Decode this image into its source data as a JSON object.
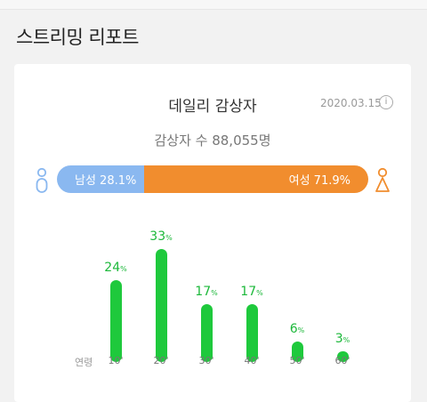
{
  "page": {
    "section_title": "스트리밍 리포트"
  },
  "card": {
    "title": "데일리 감상자",
    "date": "2020.03.15",
    "info_icon": "info-icon",
    "total_label": "감상자 수 88,055명"
  },
  "gender": {
    "male_label": "남성 28.1%",
    "female_label": "여성 71.9%",
    "male_fraction": 0.281,
    "female_fraction": 0.719,
    "male_color": "#8ab8f0",
    "female_color": "#f18d2e"
  },
  "chart_data": {
    "type": "bar",
    "categories": [
      "10'",
      "20'",
      "30'",
      "40'",
      "50'",
      "60'"
    ],
    "values": [
      24,
      33,
      17,
      17,
      6,
      3
    ],
    "value_suffix": "%",
    "xlabel": "연령",
    "color": "#1ec93c",
    "label_color": "#1cb83a"
  }
}
